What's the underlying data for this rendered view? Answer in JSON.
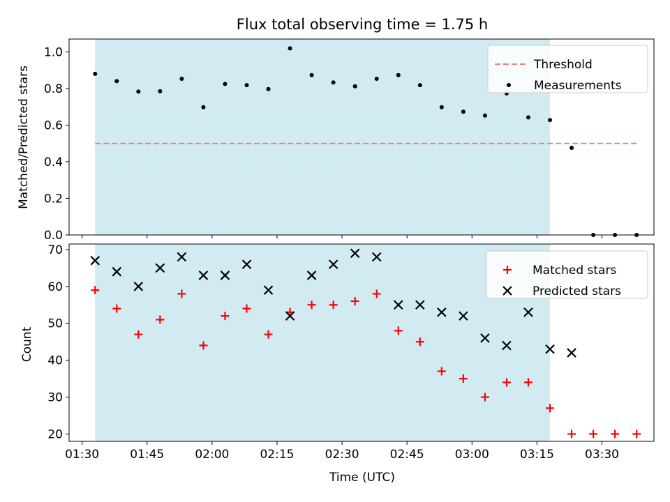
{
  "chart_data": [
    {
      "type": "scatter",
      "title": "Flux total observing time = 1.75 h",
      "xlabel": "",
      "ylabel": "Matched/Predicted stars",
      "xlim": [
        "01:27",
        "03:42"
      ],
      "ylim": [
        0.0,
        1.07
      ],
      "yticks": [
        "0.0",
        "0.2",
        "0.4",
        "0.6",
        "0.8",
        "1.0"
      ],
      "shaded_interval": [
        "01:33",
        "03:18"
      ],
      "shade_color": "#add8e6",
      "threshold": {
        "name": "Threshold",
        "value": 0.5,
        "x_start": "01:33",
        "x_end": "03:38",
        "color": "#f08080"
      },
      "legend_position": "upper right",
      "series": [
        {
          "name": "Measurements",
          "marker": "dot",
          "color": "#000000",
          "x": [
            "01:33",
            "01:38",
            "01:43",
            "01:48",
            "01:53",
            "01:58",
            "02:03",
            "02:08",
            "02:13",
            "02:18",
            "02:23",
            "02:28",
            "02:33",
            "02:38",
            "02:43",
            "02:48",
            "02:53",
            "02:58",
            "03:03",
            "03:08",
            "03:13",
            "03:18",
            "03:23",
            "03:28",
            "03:33",
            "03:38"
          ],
          "values": [
            0.88,
            0.84,
            0.783,
            0.785,
            0.853,
            0.698,
            0.825,
            0.818,
            0.797,
            1.019,
            0.873,
            0.833,
            0.812,
            0.853,
            0.873,
            0.818,
            0.698,
            0.673,
            0.652,
            0.773,
            0.642,
            0.628,
            0.476,
            0.0,
            0.0,
            0.0
          ]
        }
      ]
    },
    {
      "type": "scatter",
      "title": "",
      "xlabel": "Time (UTC)",
      "ylabel": "Count",
      "xlim": [
        "01:27",
        "03:42"
      ],
      "ylim": [
        18,
        71.5
      ],
      "xticks": [
        "01:30",
        "01:45",
        "02:00",
        "02:15",
        "02:30",
        "02:45",
        "03:00",
        "03:15",
        "03:30"
      ],
      "yticks": [
        "20",
        "30",
        "40",
        "50",
        "60",
        "70"
      ],
      "shaded_interval": [
        "01:33",
        "03:18"
      ],
      "shade_color": "#add8e6",
      "legend_position": "upper right",
      "series": [
        {
          "name": "Matched stars",
          "marker": "plus",
          "color": "#ff0000",
          "x": [
            "01:33",
            "01:38",
            "01:43",
            "01:48",
            "01:53",
            "01:58",
            "02:03",
            "02:08",
            "02:13",
            "02:18",
            "02:23",
            "02:28",
            "02:33",
            "02:38",
            "02:43",
            "02:48",
            "02:53",
            "02:58",
            "03:03",
            "03:08",
            "03:13",
            "03:18",
            "03:23",
            "03:28",
            "03:33",
            "03:38"
          ],
          "values": [
            59,
            54,
            47,
            51,
            58,
            44,
            52,
            54,
            47,
            53,
            55,
            55,
            56,
            58,
            48,
            45,
            37,
            35,
            30,
            34,
            34,
            27,
            20,
            20,
            20,
            20
          ]
        },
        {
          "name": "Predicted stars",
          "marker": "x",
          "color": "#000000",
          "x": [
            "01:33",
            "01:38",
            "01:43",
            "01:48",
            "01:53",
            "01:58",
            "02:03",
            "02:08",
            "02:13",
            "02:18",
            "02:23",
            "02:28",
            "02:33",
            "02:38",
            "02:43",
            "02:48",
            "02:53",
            "02:58",
            "03:03",
            "03:08",
            "03:13",
            "03:18",
            "03:23"
          ],
          "values": [
            67,
            64,
            60,
            65,
            68,
            63,
            63,
            66,
            59,
            52,
            63,
            66,
            69,
            68,
            55,
            55,
            53,
            52,
            46,
            44,
            53,
            43,
            42
          ]
        }
      ]
    }
  ]
}
